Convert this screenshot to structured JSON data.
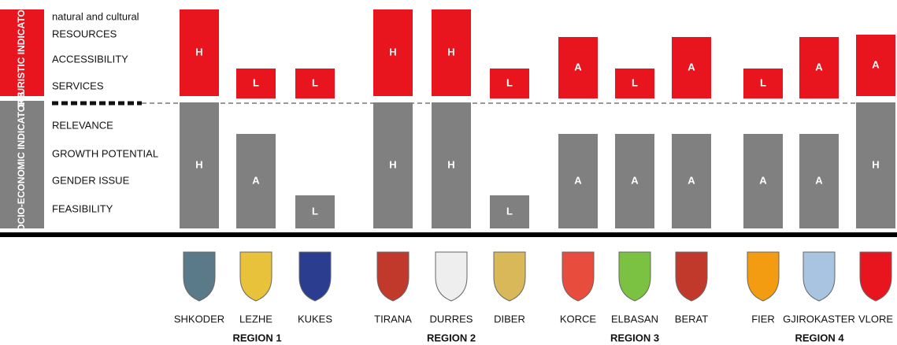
{
  "side_labels": {
    "touristic": "TOURISTIC INDICATORs",
    "socio": "SOCIO-ECONOMIC INDICATORS"
  },
  "row_labels": {
    "touristic": [
      "natural and cultural",
      "RESOURCES",
      "ACCESSIBILITY",
      "SERVICES"
    ],
    "socio": [
      "RELEVANCE",
      "GROWTH POTENTIAL",
      "GENDER ISSUE",
      "FEASIBILITY"
    ]
  },
  "regions": [
    {
      "name": "REGION 1",
      "municipalities": [
        {
          "name": "SHKODER",
          "socio": "H",
          "touristic": "H"
        },
        {
          "name": "LEZHE",
          "socio": "A",
          "touristic": "L"
        },
        {
          "name": "KUKES",
          "socio": "L",
          "touristic": "L"
        }
      ]
    },
    {
      "name": "REGION 2",
      "municipalities": [
        {
          "name": "TIRANA",
          "socio": "H",
          "touristic": "H"
        },
        {
          "name": "DURRES",
          "socio": "H",
          "touristic": "H"
        },
        {
          "name": "DIBER",
          "socio": "L",
          "touristic": "L"
        }
      ]
    },
    {
      "name": "REGION 3",
      "municipalities": [
        {
          "name": "KORCE",
          "socio": "A",
          "touristic": "A"
        },
        {
          "name": "ELBASAN",
          "socio": "A",
          "touristic": "L"
        },
        {
          "name": "BERAT",
          "socio": "A",
          "touristic": "A"
        }
      ]
    },
    {
      "name": "REGION 4",
      "municipalities": [
        {
          "name": "FIER",
          "socio": "A",
          "touristic": "L"
        },
        {
          "name": "GJIROKASTER",
          "socio": "A",
          "touristic": "A"
        },
        {
          "name": "VLORE",
          "socio": "H",
          "touristic": "A"
        }
      ]
    }
  ]
}
